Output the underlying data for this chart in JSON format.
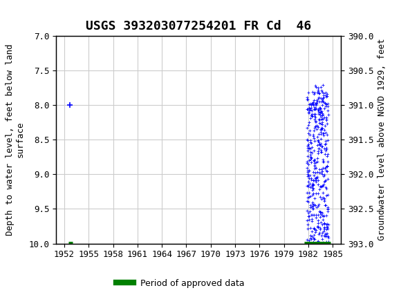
{
  "title": "USGS 393203077254201 FR Cd  46",
  "ylabel_left": "Depth to water level, feet below land\nsurface",
  "ylabel_right": "Groundwater level above NGVD 1929, feet",
  "ylim_left": [
    7.0,
    10.0
  ],
  "ylim_right": [
    393.0,
    390.0
  ],
  "xlim": [
    1951,
    1986
  ],
  "xticks": [
    1952,
    1955,
    1958,
    1961,
    1964,
    1967,
    1970,
    1973,
    1976,
    1979,
    1982,
    1985
  ],
  "yticks_left": [
    7.0,
    7.5,
    8.0,
    8.5,
    9.0,
    9.5,
    10.0
  ],
  "yticks_right": [
    393.0,
    392.5,
    392.0,
    391.5,
    391.0,
    390.5,
    390.0
  ],
  "point_color": "#0000ff",
  "approved_color": "#008000",
  "header_color": "#006666",
  "background_color": "#ffffff",
  "plot_bg_color": "#ffffff",
  "grid_color": "#cccccc",
  "legend_label": "Period of approved data",
  "single_point_x": 1952.7,
  "single_point_y": 8.0,
  "cluster_start_x": 1981.8,
  "cluster_end_x": 1984.5,
  "approved_bar_start": 1952.5,
  "approved_bar_end": 1953.0,
  "approved_bar_start2": 1981.5,
  "approved_bar_end2": 1984.7,
  "approved_bar_y": 10.0,
  "title_fontsize": 13,
  "axis_label_fontsize": 9,
  "tick_fontsize": 9
}
